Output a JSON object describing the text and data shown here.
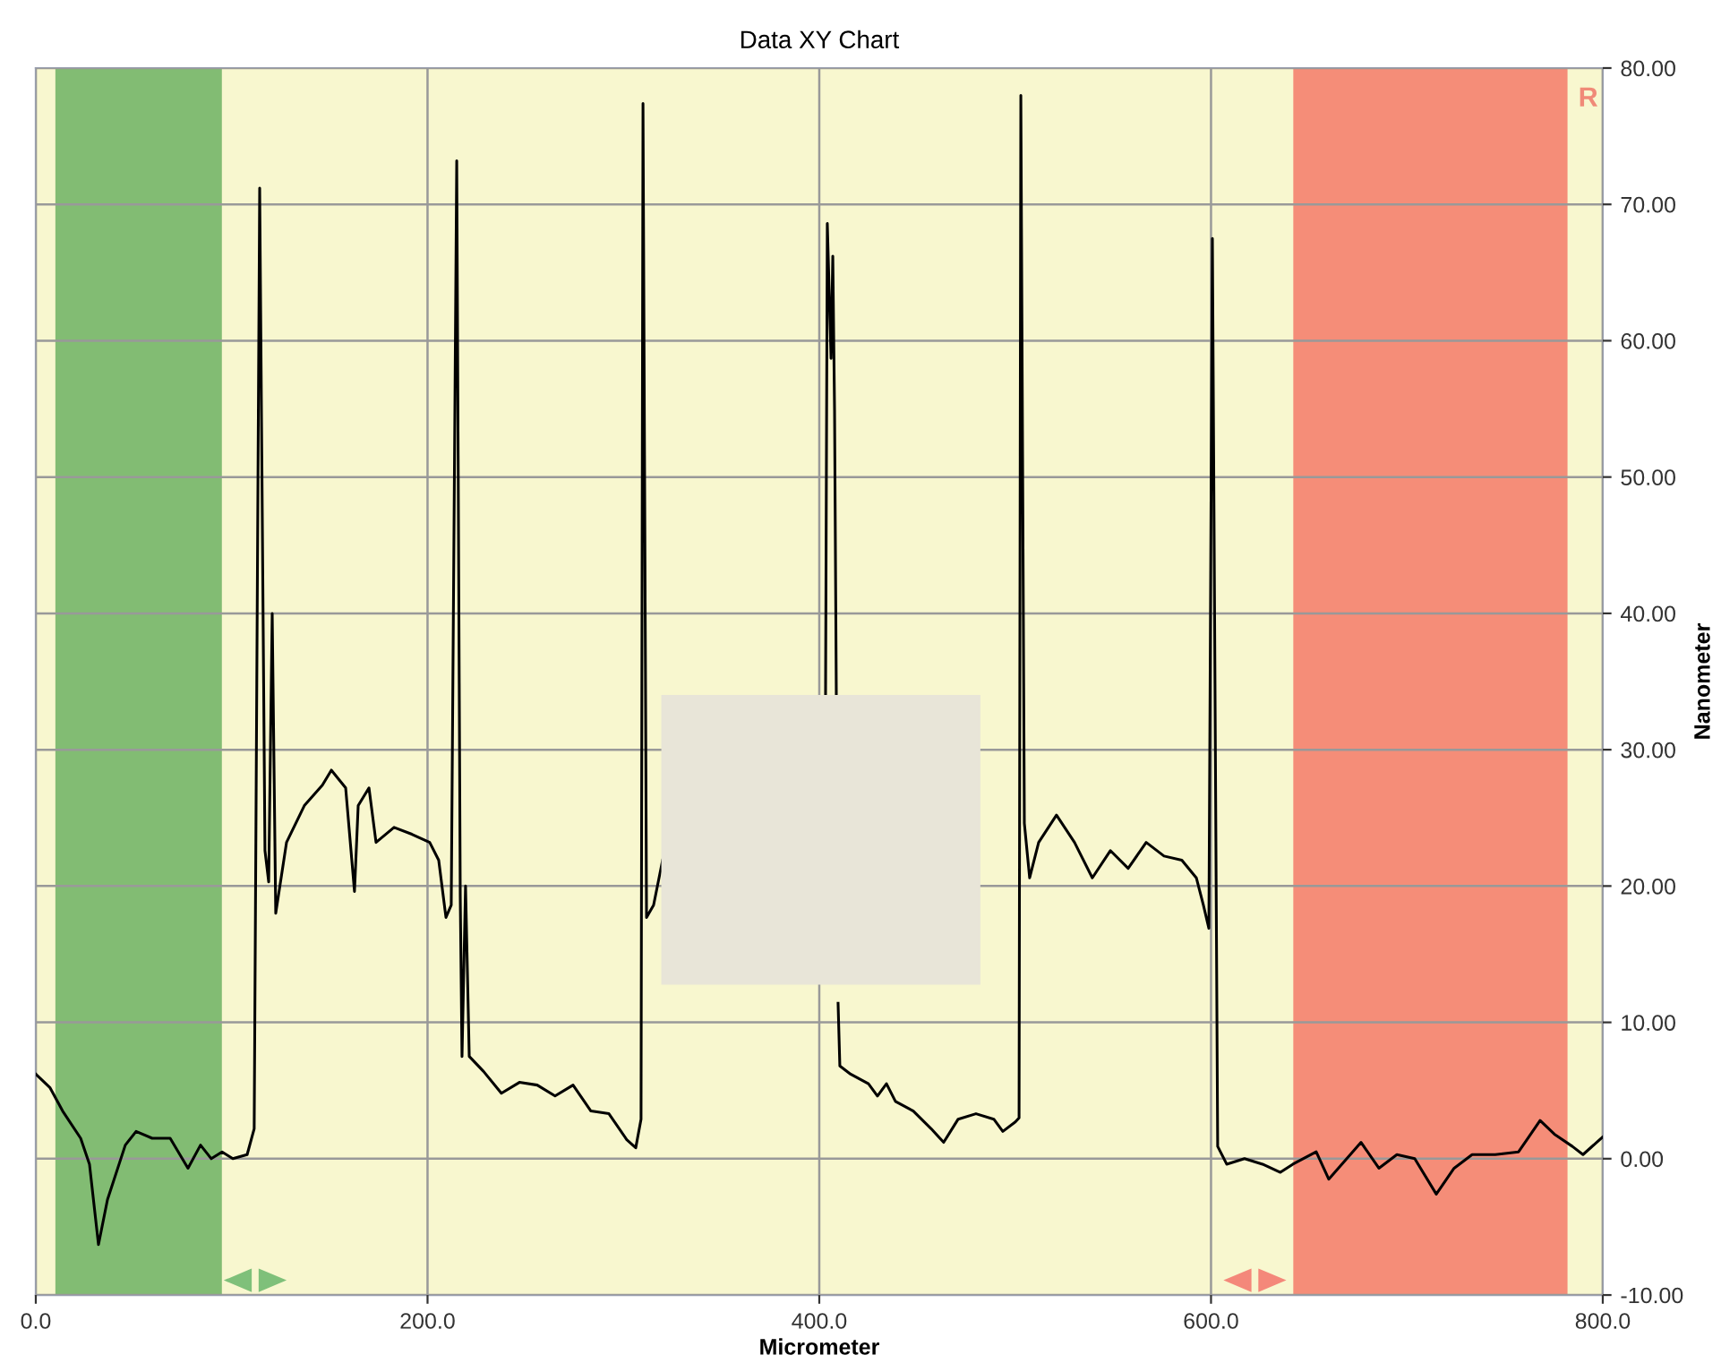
{
  "chart_data": {
    "type": "line",
    "title": "Data XY Chart",
    "xlabel": "Micrometer",
    "ylabel": "Nanometer",
    "annotations": [
      "R"
    ],
    "x": [
      0,
      7.3,
      13.7,
      22.9,
      27.4,
      32,
      36.6,
      45.7,
      51.2,
      59.4,
      68.6,
      77.7,
      84.1,
      89.6,
      95.1,
      100.6,
      107.9,
      111.5,
      114.3,
      117,
      118.9,
      120.7,
      122.5,
      128,
      137.1,
      146.3,
      150.9,
      158.2,
      162.7,
      164.6,
      170.1,
      173.7,
      182.9,
      192,
      201.1,
      205.7,
      209.4,
      212.1,
      214.9,
      216.7,
      217.6,
      219.4,
      221.3,
      228.6,
      237.7,
      246.9,
      256,
      265.1,
      274.3,
      283.4,
      292.6,
      301.7,
      306.3,
      309,
      310,
      311.8,
      315.4,
      320,
      360,
      403.2,
      404.1,
      406,
      406.9,
      407.8,
      408.7,
      409.1,
      409.6,
      410.5,
      416,
      425.1,
      429.7,
      434.3,
      438.9,
      448,
      457.1,
      463.5,
      470.9,
      480,
      489.1,
      493.7,
      500.1,
      502,
      502.9,
      504.7,
      507.4,
      512,
      521.1,
      530.3,
      539.4,
      548.6,
      557.7,
      566.9,
      576,
      585.1,
      592.5,
      596.1,
      598.9,
      600.7,
      603.4,
      608,
      617.1,
      626.3,
      635.4,
      641.8,
      653.7,
      660.1,
      669.3,
      676.6,
      685.7,
      694.9,
      704,
      715,
      724.1,
      733.3,
      745.1,
      757,
      768,
      775.3,
      784.5,
      789.9,
      800
    ],
    "series": [
      {
        "color": "#000000",
        "values": [
          6.2,
          5.2,
          3.5,
          1.5,
          -0.4,
          -6.3,
          -3,
          1,
          2,
          1.5,
          1.5,
          -0.7,
          1,
          0,
          0.5,
          0,
          0.3,
          2.2,
          71.2,
          22.6,
          20.3,
          40,
          18,
          23.2,
          25.9,
          27.4,
          28.5,
          27.2,
          19.6,
          25.9,
          27.2,
          23.2,
          24.3,
          23.8,
          23.2,
          21.9,
          17.7,
          18.6,
          73.2,
          19.3,
          7.5,
          20,
          7.5,
          6.4,
          4.8,
          5.6,
          5.4,
          4.6,
          5.4,
          3.5,
          3.3,
          1.4,
          0.8,
          2.9,
          77.4,
          17.7,
          18.6,
          21.9,
          null,
          33.9,
          68.6,
          58.7,
          66.2,
          54.8,
          33.9,
          null,
          11.4,
          6.8,
          6.2,
          5.5,
          4.6,
          5.5,
          4.2,
          3.5,
          2.2,
          1.2,
          2.9,
          3.3,
          2.9,
          2,
          2.7,
          3,
          78,
          24.6,
          20.6,
          23.2,
          25.2,
          23.2,
          20.6,
          22.6,
          21.3,
          23.2,
          22.2,
          21.9,
          20.6,
          18.6,
          16.9,
          67.5,
          0.9,
          -0.4,
          0,
          -0.4,
          -1,
          -0.4,
          0.5,
          -1.5,
          0,
          1.2,
          -0.7,
          0.3,
          0,
          -2.6,
          -0.7,
          0.3,
          0.3,
          0.5,
          2.8,
          1.8,
          0.9,
          0.3,
          1.6
        ]
      }
    ],
    "xlim": [
      0,
      800
    ],
    "ylim": [
      -10,
      80
    ],
    "xticks": [
      {
        "value": 0,
        "label": "0.0"
      },
      {
        "value": 200,
        "label": "200.0"
      },
      {
        "value": 400,
        "label": "400.0"
      },
      {
        "value": 600,
        "label": "600.0"
      },
      {
        "value": 800,
        "label": "800.0"
      }
    ],
    "yticks": [
      {
        "value": -10,
        "label": "-10.00"
      },
      {
        "value": 0,
        "label": "0.00"
      },
      {
        "value": 10,
        "label": "10.00"
      },
      {
        "value": 20,
        "label": "20.00"
      },
      {
        "value": 30,
        "label": "30.00"
      },
      {
        "value": 40,
        "label": "40.00"
      },
      {
        "value": 50,
        "label": "50.00"
      },
      {
        "value": 60,
        "label": "60.00"
      },
      {
        "value": 70,
        "label": "70.00"
      },
      {
        "value": 80,
        "label": "80.00"
      }
    ],
    "bands": [
      {
        "axis": "x",
        "from": 10,
        "to": 95,
        "color": "#6db163"
      },
      {
        "axis": "x",
        "from": 642,
        "to": 782,
        "color": "#f47a68"
      }
    ],
    "grid": true,
    "marker": "none",
    "line_style": "solid"
  }
}
